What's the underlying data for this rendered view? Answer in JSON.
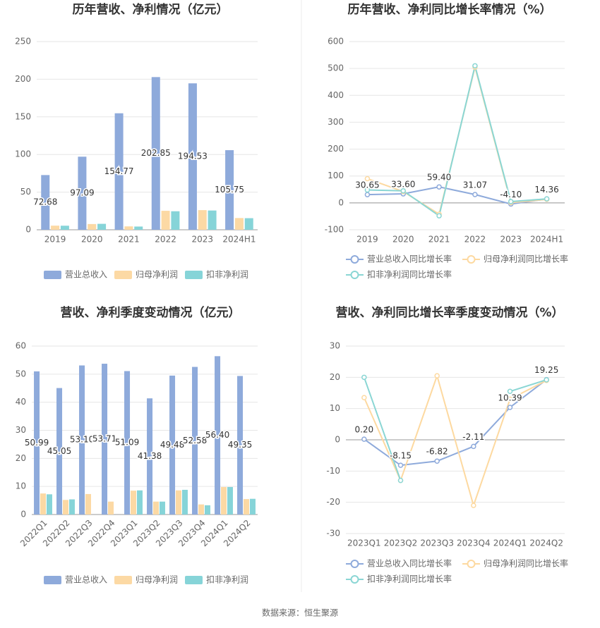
{
  "chart_data": [
    {
      "type": "bar",
      "title": "历年营收、净利情况（亿元）",
      "categories": [
        "2019",
        "2020",
        "2021",
        "2022",
        "2023",
        "2024H1"
      ],
      "series": [
        {
          "name": "营业总收入",
          "color": "#8eaadb",
          "values": [
            72.68,
            97.09,
            154.77,
            202.85,
            194.53,
            105.75
          ],
          "value_labels": [
            "72.68",
            "97.09",
            "154.77",
            "202.85",
            "194.53",
            "105.75"
          ]
        },
        {
          "name": "归母净利润",
          "color": "#fcd9a4",
          "values": [
            5.5,
            7.6,
            4.5,
            25.2,
            26.1,
            15.6
          ]
        },
        {
          "name": "扣非净利润",
          "color": "#86d4d8",
          "values": [
            5.4,
            7.9,
            4.3,
            24.6,
            25.6,
            15.4
          ]
        }
      ],
      "ylim": [
        0,
        250
      ],
      "yticks": [
        0,
        50,
        100,
        150,
        200,
        250
      ],
      "grid": true
    },
    {
      "type": "line",
      "title": "历年营收、净利同比增长率情况（%）",
      "categories": [
        "2019",
        "2020",
        "2021",
        "2022",
        "2023",
        "2024H1"
      ],
      "series": [
        {
          "name": "营业总收入同比增长率",
          "color": "#8eaadb",
          "values": [
            30.65,
            33.6,
            59.4,
            31.07,
            -4.1,
            14.36
          ],
          "value_labels": [
            "30.65",
            "33.60",
            "59.40",
            "31.07",
            "-4.10",
            "14.36"
          ]
        },
        {
          "name": "归母净利润同比增长率",
          "color": "#fdd9a0",
          "values": [
            90,
            42,
            -42,
            505,
            1,
            13
          ]
        },
        {
          "name": "扣非净利润同比增长率",
          "color": "#8ad6d4",
          "values": [
            48,
            45,
            -48,
            510,
            5,
            15
          ]
        }
      ],
      "ylim": [
        -100,
        600
      ],
      "yticks": [
        -100,
        0,
        100,
        200,
        300,
        400,
        500,
        600
      ],
      "grid": true
    },
    {
      "type": "bar",
      "title": "营收、净利季度变动情况（亿元）",
      "categories": [
        "2022Q1",
        "2022Q2",
        "2022Q3",
        "2022Q4",
        "2023Q1",
        "2023Q2",
        "2023Q3",
        "2023Q4",
        "2024Q1",
        "2024Q2"
      ],
      "series": [
        {
          "name": "营业总收入",
          "color": "#8eaadb",
          "values": [
            50.99,
            45.05,
            53.1,
            53.71,
            51.09,
            41.38,
            49.48,
            52.58,
            56.4,
            49.35
          ],
          "value_labels": [
            "50.99",
            "45.05",
            "53.10",
            "53.71",
            "51.09",
            "41.38",
            "49.48",
            "52.58",
            "56.40",
            "49.35"
          ]
        },
        {
          "name": "归母净利润",
          "color": "#fcd9a4",
          "values": [
            7.5,
            5.2,
            7.3,
            4.6,
            8.5,
            4.6,
            8.6,
            3.6,
            9.8,
            5.5
          ]
        },
        {
          "name": "扣非净利润",
          "color": "#86d4d8",
          "values": [
            7.2,
            5.4,
            null,
            null,
            8.6,
            4.6,
            8.8,
            3.3,
            9.8,
            5.6
          ]
        }
      ],
      "ylim": [
        0,
        60
      ],
      "yticks": [
        0,
        10,
        20,
        30,
        40,
        50,
        60
      ],
      "grid": true
    },
    {
      "type": "line",
      "title": "营收、净利同比增长率季度变动情况（%）",
      "categories": [
        "2023Q1",
        "2023Q2",
        "2023Q3",
        "2023Q4",
        "2024Q1",
        "2024Q2"
      ],
      "series": [
        {
          "name": "营业总收入同比增长率",
          "color": "#8eaadb",
          "values": [
            0.2,
            -8.15,
            -6.82,
            -2.11,
            10.39,
            19.25
          ],
          "value_labels": [
            "0.20",
            "-8.15",
            "-6.82",
            "-2.11",
            "10.39",
            "19.25"
          ]
        },
        {
          "name": "归母净利润同比增长率",
          "color": "#fdd9a0",
          "values": [
            13.5,
            -13,
            20.5,
            -21,
            13,
            19
          ]
        },
        {
          "name": "扣非净利润同比增长率",
          "color": "#8ad6d4",
          "values": [
            20,
            -13,
            null,
            null,
            15.5,
            19.2
          ]
        }
      ],
      "ylim": [
        -30,
        30
      ],
      "yticks": [
        -30,
        -20,
        -10,
        0,
        10,
        20,
        30
      ],
      "grid": true
    }
  ],
  "source": "数据来源：恒生聚源"
}
